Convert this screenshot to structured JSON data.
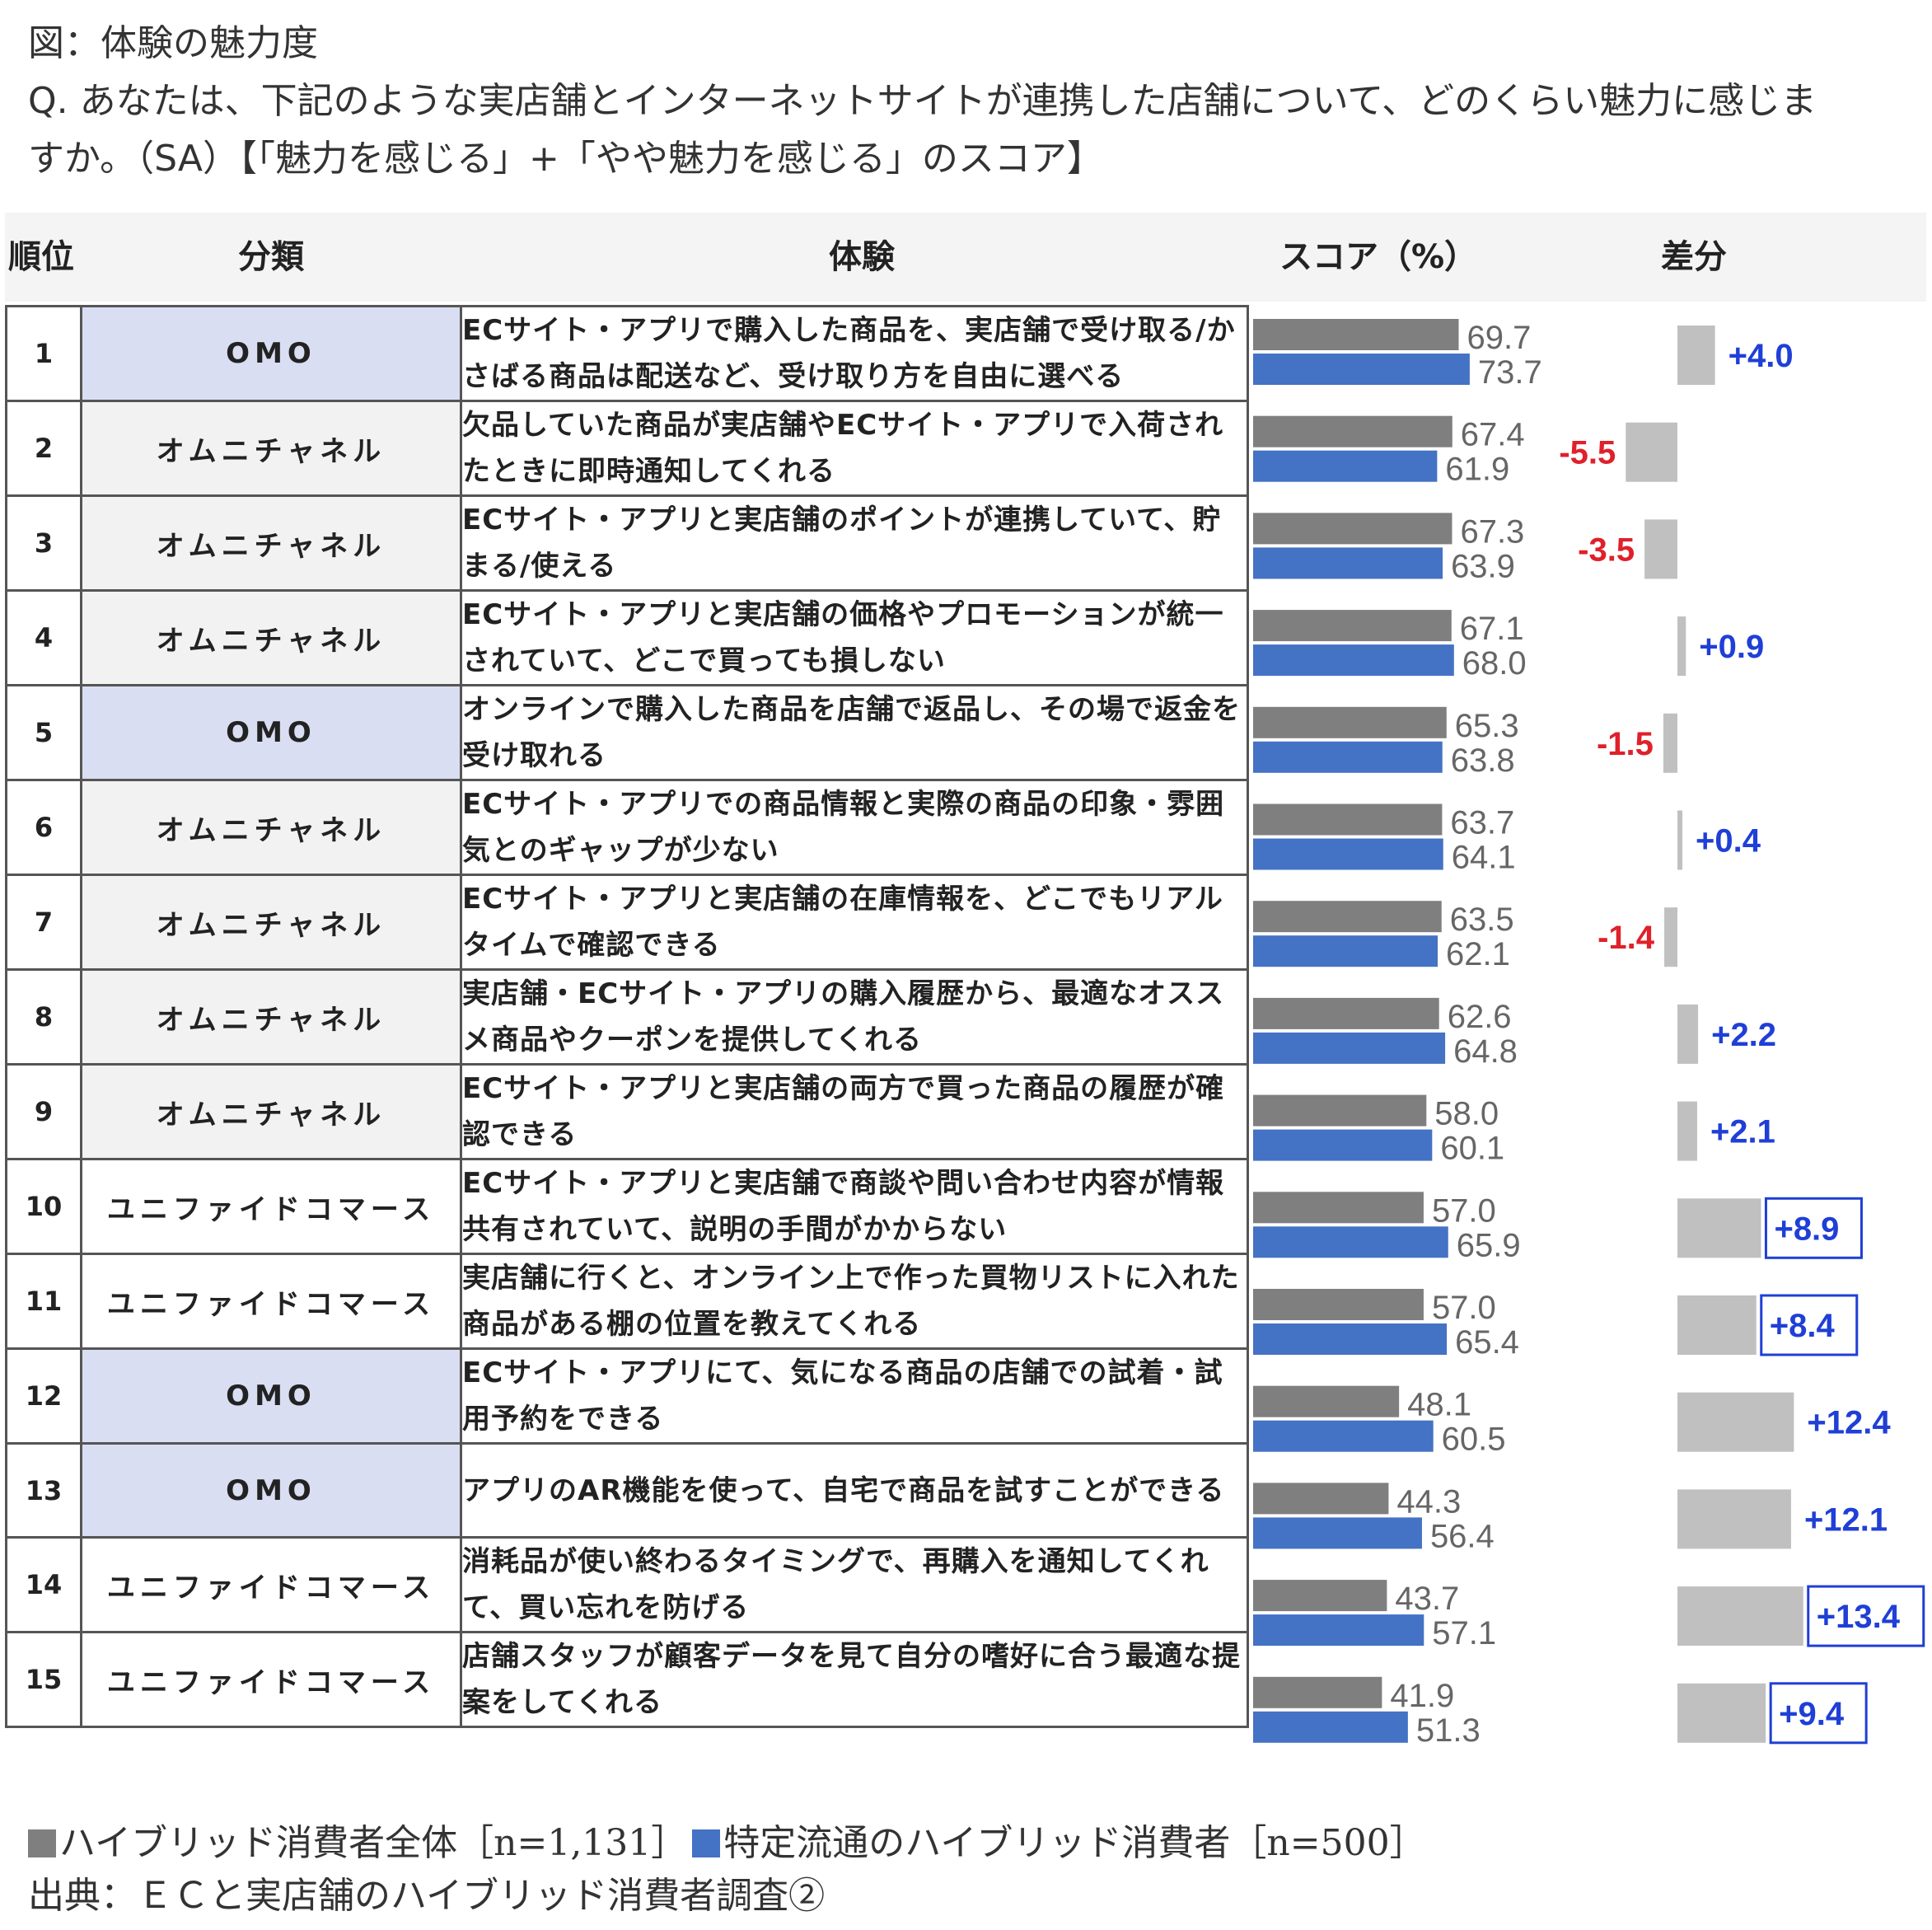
{
  "title": {
    "line1": "図：体験の魅力度",
    "line2": "Q. あなたは、下記のような実店舗とインターネットサイトが連携した店舗について、どのくらい魅力に感じま",
    "line3": "すか。（SA）【「魅力を感じる」+「やや魅力を感じる」のスコア】"
  },
  "headers": {
    "rank": "順位",
    "category": "分類",
    "experience": "体験",
    "score": "スコア（%）",
    "diff": "差分"
  },
  "colors": {
    "series_all": "#7f7f7f",
    "series_specific": "#4472c4",
    "diff_bar": "#c0c0c0",
    "positive_text": "#1f3fd6",
    "negative_text": "#e0202a",
    "omo_bg": "#d9def3",
    "omni_bg": "#f2f2f2",
    "unified_bg": "#fbe3d6"
  },
  "legend": {
    "series_all": "ハイブリッド消費者全体［n=1,131］",
    "series_specific": "特定流通のハイブリッド消費者［n=500］"
  },
  "source": "出典：ＥＣと実店舗のハイブリッド消費者調査②",
  "chart_data": {
    "type": "bar",
    "orientation": "horizontal",
    "series": [
      {
        "name": "ハイブリッド消費者全体［n=1,131］",
        "values": [
          69.7,
          67.4,
          67.3,
          67.1,
          65.3,
          63.7,
          63.5,
          62.6,
          58.0,
          57.0,
          57.0,
          48.1,
          44.3,
          43.7,
          41.9
        ]
      },
      {
        "name": "特定流通のハイブリッド消費者［n=500］",
        "values": [
          73.7,
          61.9,
          63.9,
          68.0,
          63.8,
          64.1,
          62.1,
          64.8,
          60.1,
          65.9,
          65.4,
          60.5,
          56.4,
          57.1,
          51.3
        ]
      }
    ],
    "rows": [
      {
        "rank": "1",
        "category": "OMO",
        "cat_type": "omo",
        "experience": "ECサイト・アプリで購入した商品を、実店舗で受け取る/かさばる商品は配送など、受け取り方を自由に選べる",
        "all": "69.7",
        "specific": "73.7",
        "diff": 4.0,
        "diff_label": "+4.0",
        "boxed": false
      },
      {
        "rank": "2",
        "category": "オムニチャネル",
        "cat_type": "omni",
        "experience": "欠品していた商品が実店舗やECサイト・アプリで入荷されたときに即時通知してくれる",
        "all": "67.4",
        "specific": "61.9",
        "diff": -5.5,
        "diff_label": "-5.5",
        "boxed": false
      },
      {
        "rank": "3",
        "category": "オムニチャネル",
        "cat_type": "omni",
        "experience": "ECサイト・アプリと実店舗のポイントが連携していて、貯まる/使える",
        "all": "67.3",
        "specific": "63.9",
        "diff": -3.5,
        "diff_label": "-3.5",
        "boxed": false
      },
      {
        "rank": "4",
        "category": "オムニチャネル",
        "cat_type": "omni",
        "experience": "ECサイト・アプリと実店舗の価格やプロモーションが統一されていて、どこで買っても損しない",
        "all": "67.1",
        "specific": "68.0",
        "diff": 0.9,
        "diff_label": "+0.9",
        "boxed": false
      },
      {
        "rank": "5",
        "category": "OMO",
        "cat_type": "omo",
        "experience": "オンラインで購入した商品を店舗で返品し、その場で返金を受け取れる",
        "all": "65.3",
        "specific": "63.8",
        "diff": -1.5,
        "diff_label": "-1.5",
        "boxed": false
      },
      {
        "rank": "6",
        "category": "オムニチャネル",
        "cat_type": "omni",
        "experience": "ECサイト・アプリでの商品情報と実際の商品の印象・雰囲気とのギャップが少ない",
        "all": "63.7",
        "specific": "64.1",
        "diff": 0.4,
        "diff_label": "+0.4",
        "boxed": false
      },
      {
        "rank": "7",
        "category": "オムニチャネル",
        "cat_type": "omni",
        "experience": "ECサイト・アプリと実店舗の在庫情報を、どこでもリアルタイムで確認できる",
        "all": "63.5",
        "specific": "62.1",
        "diff": -1.4,
        "diff_label": "-1.4",
        "boxed": false
      },
      {
        "rank": "8",
        "category": "オムニチャネル",
        "cat_type": "omni",
        "experience": "実店舗・ECサイト・アプリの購入履歴から、最適なオススメ商品やクーポンを提供してくれる",
        "all": "62.6",
        "specific": "64.8",
        "diff": 2.2,
        "diff_label": "+2.2",
        "boxed": false
      },
      {
        "rank": "9",
        "category": "オムニチャネル",
        "cat_type": "omni",
        "experience": "ECサイト・アプリと実店舗の両方で買った商品の履歴が確認できる",
        "all": "58.0",
        "specific": "60.1",
        "diff": 2.1,
        "diff_label": "+2.1",
        "boxed": false
      },
      {
        "rank": "10",
        "category": "ユニファイドコマース",
        "cat_type": "unified",
        "experience": "ECサイト・アプリと実店舗で商談や問い合わせ内容が情報共有されていて、説明の手間がかからない",
        "all": "57.0",
        "specific": "65.9",
        "diff": 8.9,
        "diff_label": "+8.9",
        "boxed": true
      },
      {
        "rank": "11",
        "category": "ユニファイドコマース",
        "cat_type": "unified",
        "experience": "実店舗に行くと、オンライン上で作った買物リストに入れた商品がある棚の位置を教えてくれる",
        "all": "57.0",
        "specific": "65.4",
        "diff": 8.4,
        "diff_label": "+8.4",
        "boxed": true
      },
      {
        "rank": "12",
        "category": "OMO",
        "cat_type": "omo",
        "experience": "ECサイト・アプリにて、気になる商品の店舗での試着・試用予約をできる",
        "all": "48.1",
        "specific": "60.5",
        "diff": 12.4,
        "diff_label": "+12.4",
        "boxed": false
      },
      {
        "rank": "13",
        "category": "OMO",
        "cat_type": "omo",
        "experience": "アプリのAR機能を使って、自宅で商品を試すことができる",
        "all": "44.3",
        "specific": "56.4",
        "diff": 12.1,
        "diff_label": "+12.1",
        "boxed": false
      },
      {
        "rank": "14",
        "category": "ユニファイドコマース",
        "cat_type": "unified",
        "experience": "消耗品が使い終わるタイミングで、再購入を通知してくれて、買い忘れを防げる",
        "all": "43.7",
        "specific": "57.1",
        "diff": 13.4,
        "diff_label": "+13.4",
        "boxed": true
      },
      {
        "rank": "15",
        "category": "ユニファイドコマース",
        "cat_type": "unified",
        "experience": "店舗スタッフが顧客データを見て自分の嗜好に合う最適な提案をしてくれる",
        "all": "41.9",
        "specific": "51.3",
        "diff": 9.4,
        "diff_label": "+9.4",
        "boxed": true
      }
    ]
  }
}
